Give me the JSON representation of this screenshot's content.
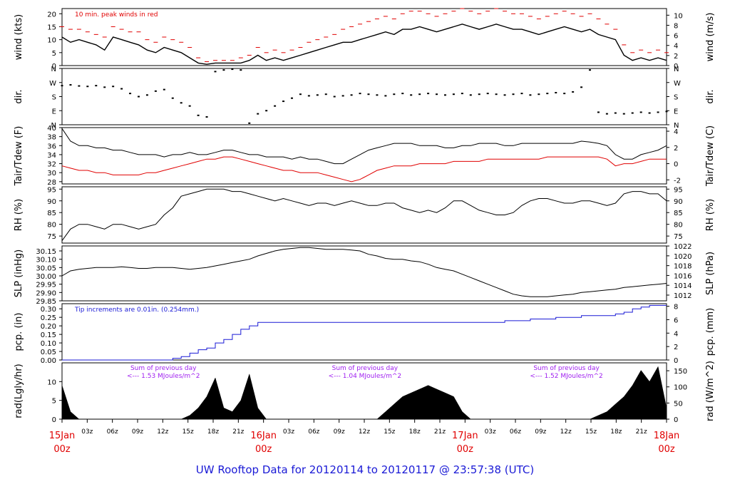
{
  "title": "UW Rooftop Data for 20120114  to  20120117 @ 23:57:38  (UTC)",
  "colors": {
    "red": "#e00000",
    "blue": "#1a1ad6",
    "purple": "#a020f0",
    "black": "#000000"
  },
  "time_axis": {
    "major_labels": [
      {
        "day": "15Jan",
        "hour": "00z",
        "t": 0
      },
      {
        "day": "16Jan",
        "hour": "00z",
        "t": 24
      },
      {
        "day": "17Jan",
        "hour": "00z",
        "t": 48
      },
      {
        "day": "18Jan",
        "hour": "00z",
        "t": 72
      }
    ],
    "minor_ticks": [
      "03z",
      "06z",
      "09z",
      "12z",
      "15z",
      "18z",
      "21z"
    ]
  },
  "chart_data": [
    {
      "type": "line",
      "panel": "wind",
      "ylabel": "wind (kts)",
      "ylabel_right": "wind (m/s)",
      "ylim": [
        0,
        22
      ],
      "yticks": [
        0,
        5,
        10,
        15,
        20
      ],
      "ylim_right": [
        0,
        11.3
      ],
      "yticks_right": [
        0,
        2,
        4,
        6,
        8,
        10
      ],
      "annotation": "10 min. peak winds in red",
      "series": [
        {
          "values": [
            11,
            9,
            10,
            9,
            8,
            6,
            11,
            10,
            9,
            8,
            6,
            5,
            7,
            6,
            5,
            3,
            1,
            0.5,
            1,
            1,
            1,
            1,
            2,
            4,
            2,
            3,
            2,
            3,
            4,
            5,
            6,
            7,
            8,
            9,
            9,
            10,
            11,
            12,
            13,
            12,
            14,
            14,
            15,
            14,
            13,
            14,
            15,
            16,
            15,
            14,
            15,
            16,
            15,
            14,
            14,
            13,
            12,
            13,
            14,
            15,
            14,
            13,
            14,
            12,
            11,
            10,
            4,
            2,
            3,
            2,
            3,
            2
          ]
        },
        {
          "values": [
            15,
            14,
            14,
            13,
            12,
            11,
            15,
            14,
            13,
            13,
            10,
            9,
            11,
            10,
            9,
            7,
            3,
            1.5,
            2,
            2,
            2,
            3,
            4,
            7,
            5,
            6,
            5,
            6,
            7,
            9,
            10,
            11,
            12,
            14,
            15,
            16,
            17,
            18,
            19,
            18,
            20,
            21,
            21,
            20,
            19,
            20,
            21,
            22,
            21,
            20,
            21,
            22,
            21,
            20,
            20,
            19,
            18,
            19,
            20,
            21,
            20,
            19,
            20,
            18,
            16,
            14,
            8,
            5,
            6,
            5,
            6,
            5
          ]
        }
      ]
    },
    {
      "type": "scatter",
      "panel": "dir",
      "ylabel": "dir.",
      "ylabel_right": "dir.",
      "yticks": [
        "N",
        "E",
        "S",
        "W",
        "N"
      ],
      "ylim": [
        0,
        360
      ],
      "series": [
        {
          "values": [
            250,
            255,
            248,
            245,
            250,
            240,
            245,
            230,
            200,
            180,
            190,
            215,
            225,
            170,
            140,
            120,
            60,
            50,
            340,
            350,
            355,
            350,
            10,
            70,
            90,
            120,
            150,
            170,
            195,
            185,
            190,
            195,
            180,
            185,
            190,
            200,
            195,
            190,
            185,
            195,
            200,
            190,
            195,
            200,
            195,
            190,
            195,
            200,
            190,
            195,
            200,
            195,
            190,
            195,
            200,
            190,
            195,
            200,
            205,
            200,
            210,
            240,
            350,
            80,
            70,
            75,
            70,
            75,
            80,
            75,
            80,
            85
          ]
        }
      ]
    },
    {
      "type": "line",
      "panel": "temp",
      "ylabel": "Tair/Tdew (F)",
      "ylabel_right": "Tair/Tdew (C)",
      "ylim": [
        27.5,
        40
      ],
      "yticks": [
        28,
        30,
        32,
        34,
        36,
        38,
        40
      ],
      "yticks_right": [
        -2,
        0,
        2,
        4
      ],
      "series": [
        {
          "values": [
            39.8,
            37,
            36,
            36,
            35.5,
            35.5,
            35,
            35,
            34.5,
            34,
            34,
            34,
            33.5,
            34,
            34,
            34.5,
            34,
            34,
            34.5,
            35,
            35,
            34.5,
            34,
            34,
            33.5,
            33.5,
            33.5,
            33,
            33.5,
            33,
            33,
            32.5,
            32,
            32,
            33,
            34,
            35,
            35.5,
            36,
            36.5,
            36.5,
            36.5,
            36,
            36,
            36,
            35.5,
            35.5,
            36,
            36,
            36.5,
            36.5,
            36.5,
            36,
            36,
            36.5,
            36.5,
            36.5,
            36.5,
            36.5,
            36.5,
            36.5,
            37,
            36.8,
            36.5,
            36,
            34,
            33,
            33,
            34,
            34.5,
            35,
            36
          ]
        },
        {
          "values": [
            31.5,
            31,
            30.5,
            30.5,
            30,
            30,
            29.5,
            29.5,
            29.5,
            29.5,
            30,
            30,
            30.5,
            31,
            31.5,
            32,
            32.5,
            33,
            33,
            33.5,
            33.5,
            33,
            32.5,
            32,
            31.5,
            31,
            30.5,
            30.5,
            30,
            30,
            30,
            29.5,
            29,
            28.5,
            28,
            28.5,
            29.5,
            30.5,
            31,
            31.5,
            31.5,
            31.5,
            32,
            32,
            32,
            32,
            32.5,
            32.5,
            32.5,
            32.5,
            33,
            33,
            33,
            33,
            33,
            33,
            33,
            33.5,
            33.5,
            33.5,
            33.5,
            33.5,
            33.5,
            33.5,
            33,
            31.5,
            32,
            32,
            32.5,
            33,
            33,
            33
          ]
        }
      ]
    },
    {
      "type": "line",
      "panel": "rh",
      "ylabel": "RH (%)",
      "ylabel_right": "RH (%)",
      "ylim": [
        72,
        96
      ],
      "yticks": [
        75,
        80,
        85,
        90,
        95
      ],
      "series": [
        {
          "values": [
            73,
            78,
            80,
            80,
            79,
            78,
            80,
            80,
            79,
            78,
            79,
            80,
            84,
            87,
            92,
            93,
            94,
            95,
            95,
            95,
            94,
            94,
            93,
            92,
            91,
            90,
            91,
            90,
            89,
            88,
            89,
            89,
            88,
            89,
            90,
            89,
            88,
            88,
            89,
            89,
            87,
            86,
            85,
            86,
            85,
            87,
            90,
            90,
            88,
            86,
            85,
            84,
            84,
            85,
            88,
            90,
            91,
            91,
            90,
            89,
            89,
            90,
            90,
            89,
            88,
            89,
            93,
            94,
            94,
            93,
            93,
            90
          ]
        }
      ]
    },
    {
      "type": "line",
      "panel": "slp",
      "ylabel": "SLP (inHg)",
      "ylabel_right": "SLP (hPa)",
      "ylim": [
        29.85,
        30.18
      ],
      "yticks": [
        29.85,
        29.9,
        29.95,
        30.0,
        30.05,
        30.1,
        30.15
      ],
      "yticks_right": [
        1012,
        1014,
        1016,
        1018,
        1020,
        1022
      ],
      "series": [
        {
          "values": [
            30.0,
            30.03,
            30.04,
            30.045,
            30.05,
            30.05,
            30.05,
            30.055,
            30.05,
            30.045,
            30.045,
            30.05,
            30.05,
            30.05,
            30.045,
            30.04,
            30.045,
            30.05,
            30.06,
            30.07,
            30.08,
            30.09,
            30.1,
            30.12,
            30.135,
            30.15,
            30.16,
            30.165,
            30.17,
            30.17,
            30.165,
            30.16,
            30.16,
            30.16,
            30.155,
            30.15,
            30.13,
            30.12,
            30.105,
            30.1,
            30.1,
            30.09,
            30.085,
            30.07,
            30.05,
            30.04,
            30.03,
            30.01,
            29.99,
            29.97,
            29.95,
            29.93,
            29.91,
            29.89,
            29.88,
            29.875,
            29.875,
            29.875,
            29.88,
            29.885,
            29.89,
            29.9,
            29.905,
            29.91,
            29.915,
            29.92,
            29.93,
            29.935,
            29.94,
            29.945,
            29.95,
            29.955
          ]
        }
      ]
    },
    {
      "type": "line",
      "panel": "pcp",
      "ylabel": "pcp. (in)",
      "ylabel_right": "pcp. (mm)",
      "ylim": [
        0,
        0.33
      ],
      "yticks": [
        0,
        0.05,
        0.1,
        0.15,
        0.2,
        0.25,
        0.3
      ],
      "yticks_right": [
        0,
        2,
        4,
        6,
        8
      ],
      "annotation": "Tip increments are 0.01in. (0.254mm.)",
      "series": [
        {
          "values": [
            0,
            0,
            0,
            0,
            0,
            0,
            0,
            0,
            0,
            0,
            0,
            0,
            0,
            0.01,
            0.02,
            0.04,
            0.06,
            0.07,
            0.1,
            0.12,
            0.15,
            0.18,
            0.2,
            0.22,
            0.22,
            0.22,
            0.22,
            0.22,
            0.22,
            0.22,
            0.22,
            0.22,
            0.22,
            0.22,
            0.22,
            0.22,
            0.22,
            0.22,
            0.22,
            0.22,
            0.22,
            0.22,
            0.22,
            0.22,
            0.22,
            0.22,
            0.22,
            0.22,
            0.22,
            0.22,
            0.22,
            0.22,
            0.23,
            0.23,
            0.23,
            0.24,
            0.24,
            0.24,
            0.25,
            0.25,
            0.25,
            0.26,
            0.26,
            0.26,
            0.26,
            0.27,
            0.28,
            0.3,
            0.31,
            0.32,
            0.32,
            0.32
          ]
        }
      ]
    },
    {
      "type": "area",
      "panel": "rad",
      "ylabel": "rad(Lgly/hr)",
      "ylabel_right": "rad (W/m^2)",
      "ylim": [
        0,
        15
      ],
      "yticks": [
        0,
        5,
        10
      ],
      "yticks_right": [
        0,
        50,
        100,
        150
      ],
      "annotations": [
        {
          "line1": "Sum of previous day",
          "line2": "<--- 1.53 MJoules/m^2",
          "t": 8
        },
        {
          "line1": "Sum of previous day",
          "line2": "<--- 1.04 MJoules/m^2",
          "t": 32
        },
        {
          "line1": "Sum of previous day",
          "line2": "<--- 1.52 MJoules/m^2",
          "t": 56
        }
      ],
      "series": [
        {
          "values": [
            9,
            2,
            0,
            0,
            0,
            0,
            0,
            0,
            0,
            0,
            0,
            0,
            0,
            0,
            0,
            1,
            3,
            6,
            11,
            3,
            2,
            5,
            12,
            3,
            0,
            0,
            0,
            0,
            0,
            0,
            0,
            0,
            0,
            0,
            0,
            0,
            0,
            0,
            2,
            4,
            6,
            7,
            8,
            9,
            8,
            7,
            6,
            2,
            0,
            0,
            0,
            0,
            0,
            0,
            0,
            0,
            0,
            0,
            0,
            0,
            0,
            0,
            0,
            1,
            2,
            4,
            6,
            9,
            13,
            10,
            14,
            3
          ]
        }
      ]
    }
  ]
}
